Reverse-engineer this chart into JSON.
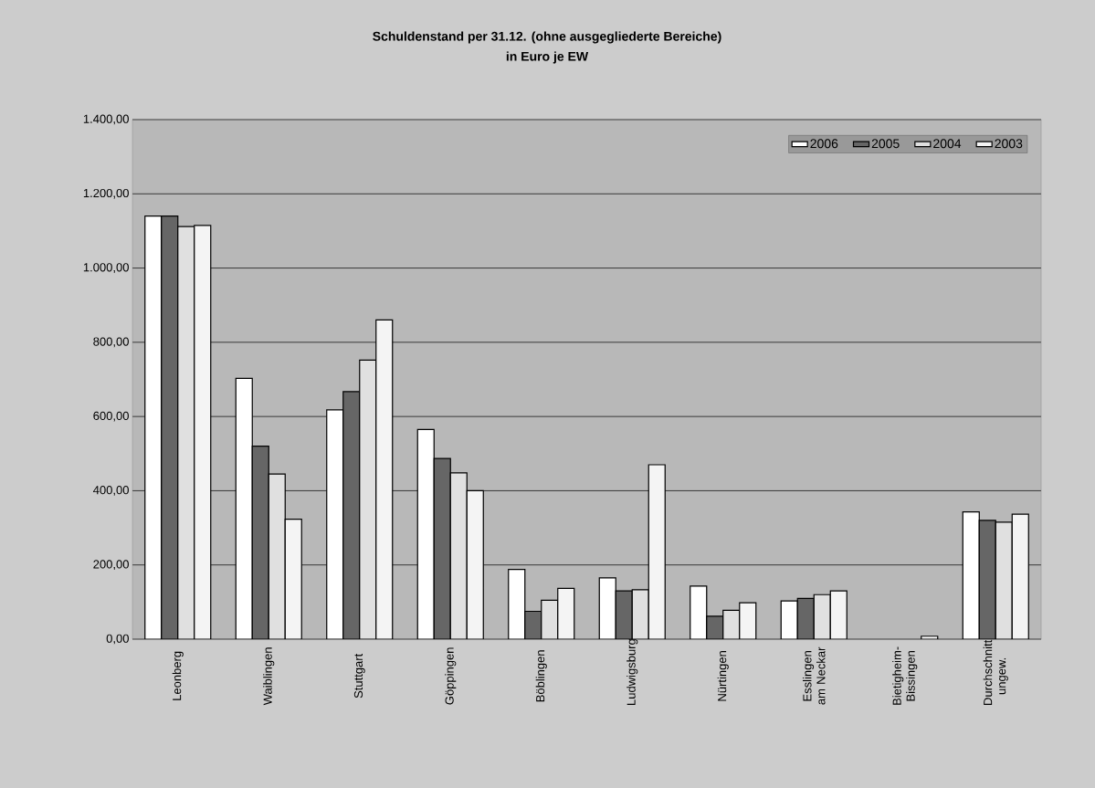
{
  "chart_data": {
    "type": "bar",
    "title": "Schuldenstand per 31.12. (ohne ausgegliederte Bereiche)",
    "subtitle": "in Euro je EW",
    "categories": [
      "Leonberg",
      "Waiblingen",
      "Stuttgart",
      "Göppingen",
      "Böblingen",
      "Ludwigsburg",
      "Nürtingen",
      "Esslingen am Neckar",
      "Bietigheim-Bissingen",
      "Durchschnitt ungew."
    ],
    "series": [
      {
        "name": "2006",
        "color": "#ffffff",
        "values": [
          1140,
          703,
          618,
          565,
          188,
          165,
          143,
          103,
          null,
          343
        ]
      },
      {
        "name": "2005",
        "color": "#666666",
        "values": [
          1140,
          520,
          667,
          487,
          75,
          130,
          62,
          110,
          null,
          320
        ]
      },
      {
        "name": "2004",
        "color": "#e0e0e0",
        "values": [
          1112,
          445,
          752,
          448,
          105,
          133,
          78,
          120,
          null,
          315
        ]
      },
      {
        "name": "2003",
        "color": "#f4f4f4",
        "values": [
          1115,
          323,
          860,
          400,
          137,
          470,
          98,
          130,
          8,
          337
        ]
      }
    ],
    "ylim": [
      0,
      1400
    ],
    "yticks": [
      {
        "value": 0,
        "label": "0,00"
      },
      {
        "value": 200,
        "label": "200,00"
      },
      {
        "value": 400,
        "label": "400,00"
      },
      {
        "value": 600,
        "label": "600,00"
      },
      {
        "value": 800,
        "label": "800,00"
      },
      {
        "value": 1000,
        "label": "1.000,00"
      },
      {
        "value": 1200,
        "label": "1.200,00"
      },
      {
        "value": 1400,
        "label": "1.400,00"
      }
    ],
    "grid": "y",
    "legend": "top right"
  }
}
